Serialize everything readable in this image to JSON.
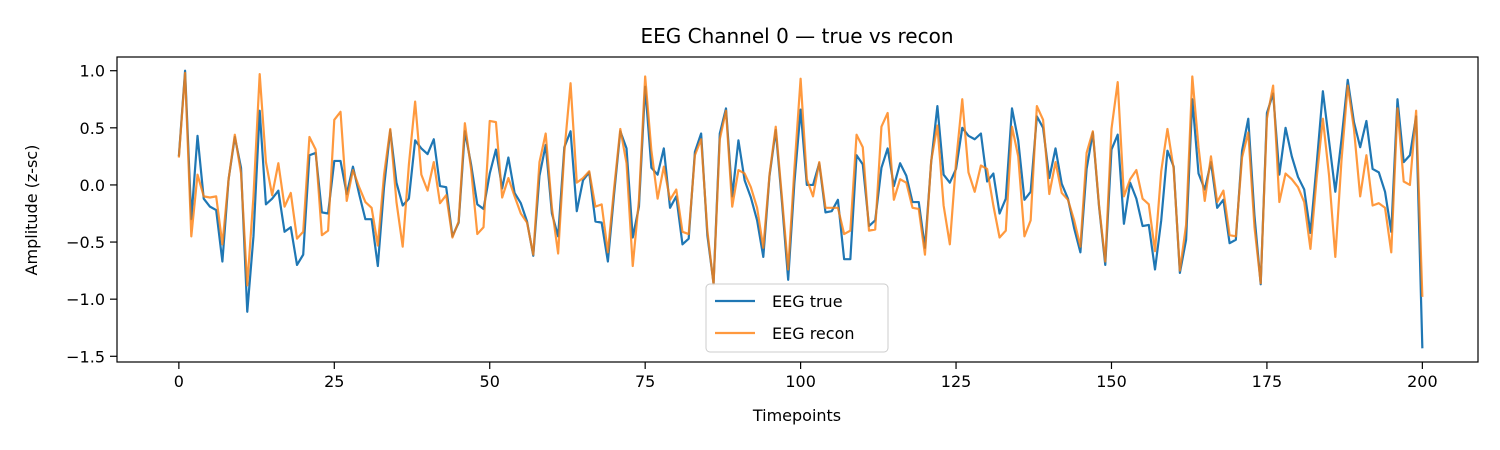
{
  "chart_data": {
    "type": "line",
    "title": "EEG Channel 0 — true vs recon",
    "xlabel": "Timepoints",
    "ylabel": "Amplitude (z-sc)",
    "xlim": [
      -9.95,
      208.95
    ],
    "ylim": [
      -1.55,
      1.12
    ],
    "xticks": [
      0,
      25,
      50,
      75,
      100,
      125,
      150,
      175,
      200
    ],
    "yticks": [
      -1.5,
      -1.0,
      -0.5,
      0.0,
      0.5,
      1.0
    ],
    "ytick_labels": [
      "−1.5",
      "−1.0",
      "−0.5",
      "0.0",
      "0.5",
      "1.0"
    ],
    "grid": false,
    "legend_position": "lower-center",
    "series": [
      {
        "name": "EEG true",
        "color": "#1f77b4",
        "values": [
          0.25,
          1.0,
          -0.3,
          0.43,
          -0.12,
          -0.19,
          -0.22,
          -0.67,
          0.05,
          0.42,
          0.15,
          -1.11,
          -0.45,
          0.65,
          -0.17,
          -0.12,
          -0.05,
          -0.41,
          -0.37,
          -0.7,
          -0.61,
          0.26,
          0.28,
          -0.24,
          -0.25,
          0.21,
          0.21,
          -0.08,
          0.16,
          -0.08,
          -0.3,
          -0.3,
          -0.71,
          -0.02,
          0.48,
          0.02,
          -0.18,
          -0.12,
          0.39,
          0.32,
          0.27,
          0.4,
          -0.01,
          -0.02,
          -0.45,
          -0.33,
          0.47,
          0.18,
          -0.17,
          -0.21,
          0.1,
          0.31,
          -0.03,
          0.24,
          -0.07,
          -0.16,
          -0.32,
          -0.62,
          0.08,
          0.35,
          -0.25,
          -0.45,
          0.33,
          0.47,
          -0.23,
          0.04,
          0.11,
          -0.32,
          -0.33,
          -0.67,
          -0.08,
          0.47,
          0.32,
          -0.46,
          -0.19,
          0.86,
          0.15,
          0.09,
          0.32,
          -0.2,
          -0.1,
          -0.52,
          -0.47,
          0.29,
          0.45,
          -0.44,
          -0.86,
          0.45,
          0.67,
          -0.1,
          0.39,
          0.04,
          -0.11,
          -0.31,
          -0.63,
          0.08,
          0.48,
          -0.15,
          -0.83,
          0.02,
          0.66,
          0.0,
          0.0,
          0.19,
          -0.24,
          -0.23,
          -0.13,
          -0.65,
          -0.65,
          0.26,
          0.18,
          -0.36,
          -0.31,
          0.15,
          0.32,
          -0.01,
          0.19,
          0.08,
          -0.15,
          -0.15,
          -0.55,
          0.2,
          0.69,
          0.09,
          0.02,
          0.14,
          0.5,
          0.43,
          0.4,
          0.45,
          0.03,
          0.1,
          -0.25,
          -0.12,
          0.67,
          0.39,
          -0.13,
          -0.06,
          0.6,
          0.5,
          0.06,
          0.32,
          0.01,
          -0.12,
          -0.38,
          -0.59,
          0.14,
          0.46,
          -0.19,
          -0.7,
          0.31,
          0.44,
          -0.34,
          0.02,
          -0.12,
          -0.36,
          -0.35,
          -0.74,
          -0.31,
          0.3,
          0.16,
          -0.77,
          -0.48,
          0.75,
          0.1,
          -0.04,
          0.2,
          -0.2,
          -0.13,
          -0.51,
          -0.48,
          0.3,
          0.58,
          -0.27,
          -0.87,
          0.63,
          0.8,
          0.09,
          0.5,
          0.25,
          0.07,
          -0.04,
          -0.42,
          0.18,
          0.82,
          0.38,
          -0.06,
          0.4,
          0.92,
          0.55,
          0.33,
          0.56,
          0.14,
          0.11,
          -0.06,
          -0.41,
          0.75,
          0.2,
          0.26,
          0.6,
          -1.43
        ]
      },
      {
        "name": "EEG recon",
        "color": "#ff7f0e",
        "values": [
          0.24,
          0.98,
          -0.45,
          0.09,
          -0.1,
          -0.11,
          -0.1,
          -0.52,
          0.05,
          0.44,
          0.1,
          -0.88,
          -0.1,
          0.97,
          0.2,
          -0.09,
          0.19,
          -0.19,
          -0.07,
          -0.47,
          -0.41,
          0.42,
          0.31,
          -0.44,
          -0.4,
          0.57,
          0.64,
          -0.14,
          0.13,
          -0.02,
          -0.15,
          -0.2,
          -0.53,
          0.09,
          0.49,
          -0.15,
          -0.54,
          0.18,
          0.73,
          0.09,
          -0.05,
          0.2,
          -0.16,
          -0.09,
          -0.46,
          -0.32,
          0.54,
          0.14,
          -0.43,
          -0.37,
          0.56,
          0.55,
          -0.11,
          0.06,
          -0.1,
          -0.25,
          -0.33,
          -0.61,
          0.2,
          0.45,
          -0.2,
          -0.6,
          0.29,
          0.89,
          0.02,
          0.06,
          0.12,
          -0.19,
          -0.17,
          -0.59,
          -0.03,
          0.49,
          0.19,
          -0.71,
          -0.13,
          0.95,
          0.3,
          -0.12,
          0.16,
          -0.13,
          -0.04,
          -0.41,
          -0.43,
          0.26,
          0.4,
          -0.4,
          -0.87,
          0.4,
          0.65,
          -0.19,
          0.13,
          0.1,
          -0.02,
          -0.2,
          -0.55,
          0.09,
          0.51,
          -0.11,
          -0.74,
          0.14,
          0.93,
          0.05,
          -0.1,
          0.2,
          -0.2,
          -0.2,
          -0.2,
          -0.43,
          -0.4,
          0.44,
          0.33,
          -0.4,
          -0.39,
          0.51,
          0.63,
          -0.13,
          0.05,
          0.02,
          -0.2,
          -0.21,
          -0.61,
          0.21,
          0.52,
          -0.18,
          -0.52,
          0.2,
          0.75,
          0.11,
          -0.06,
          0.17,
          0.14,
          -0.18,
          -0.46,
          -0.4,
          0.51,
          0.25,
          -0.45,
          -0.31,
          0.69,
          0.57,
          -0.08,
          0.2,
          -0.07,
          -0.13,
          -0.31,
          -0.54,
          0.28,
          0.47,
          -0.18,
          -0.67,
          0.49,
          0.9,
          -0.1,
          0.05,
          0.13,
          -0.12,
          -0.17,
          -0.58,
          0.12,
          0.49,
          0.14,
          -0.75,
          -0.35,
          0.95,
          0.33,
          -0.14,
          0.25,
          -0.15,
          -0.05,
          -0.44,
          -0.45,
          0.24,
          0.46,
          -0.37,
          -0.86,
          0.58,
          0.87,
          -0.15,
          0.1,
          0.05,
          -0.02,
          -0.15,
          -0.56,
          0.06,
          0.58,
          0.08,
          -0.63,
          0.22,
          0.87,
          0.49,
          -0.1,
          0.26,
          -0.18,
          -0.16,
          -0.2,
          -0.59,
          0.67,
          0.03,
          0.0,
          0.65,
          -0.98
        ]
      }
    ]
  }
}
